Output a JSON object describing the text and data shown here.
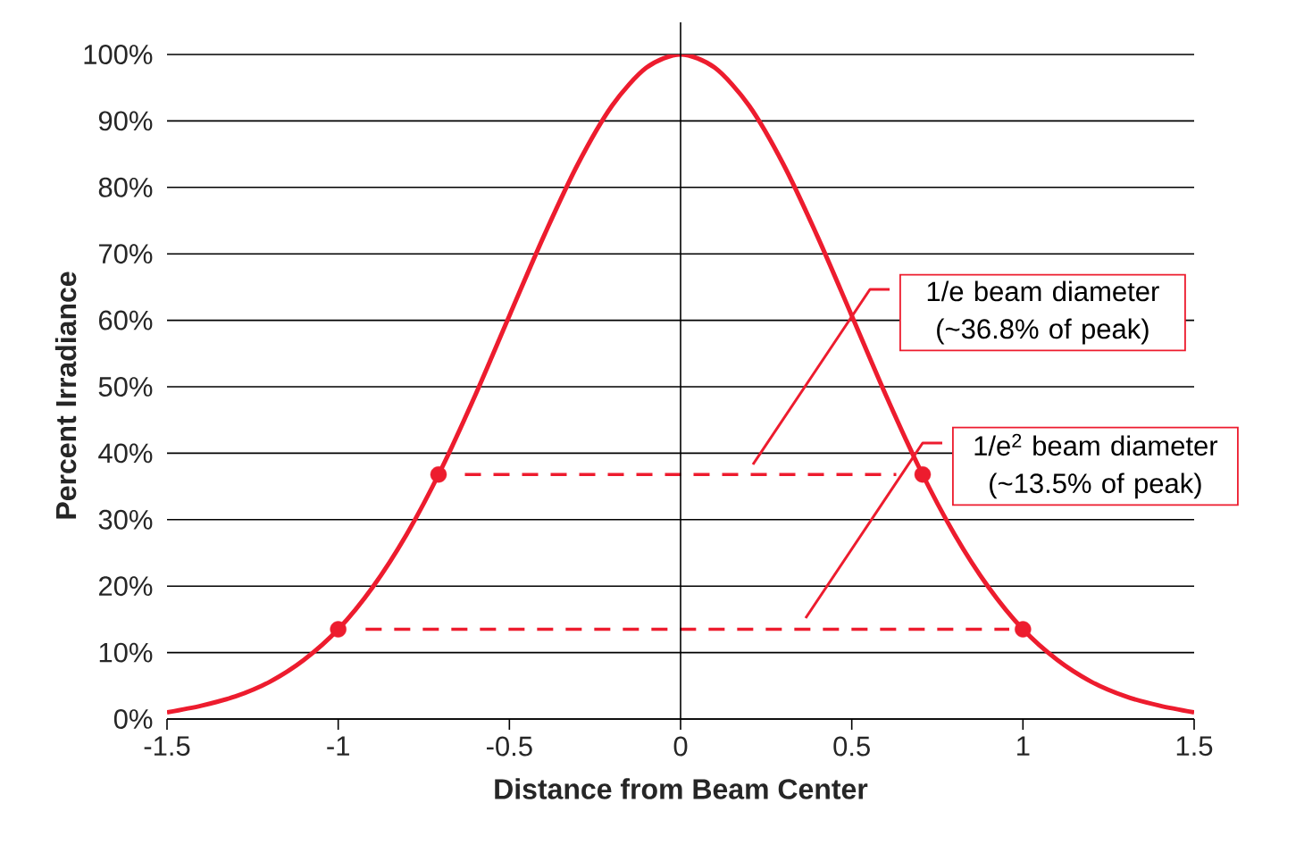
{
  "chart_data": {
    "type": "line",
    "xlabel": "Distance from Beam Center",
    "ylabel": "Percent Irradiance",
    "xlim": [
      -1.5,
      1.5
    ],
    "ylim": [
      0,
      100
    ],
    "xticks": [
      -1.5,
      -1,
      -0.5,
      0,
      0.5,
      1,
      1.5
    ],
    "yticks": [
      {
        "value": 0,
        "label": "0%"
      },
      {
        "value": 10,
        "label": "10%"
      },
      {
        "value": 20,
        "label": "20%"
      },
      {
        "value": 30,
        "label": "30%"
      },
      {
        "value": 40,
        "label": "40%"
      },
      {
        "value": 50,
        "label": "50%"
      },
      {
        "value": 60,
        "label": "60%"
      },
      {
        "value": 70,
        "label": "70%"
      },
      {
        "value": 80,
        "label": "80%"
      },
      {
        "value": 90,
        "label": "90%"
      },
      {
        "value": 100,
        "label": "100%"
      }
    ],
    "grid": "y",
    "series": [
      {
        "type": "line",
        "color": "#ed1c2e",
        "marker": "none",
        "line_style": "solid",
        "x": [
          -1.5,
          -1.4,
          -1.3,
          -1.2,
          -1.1,
          -1.0,
          -0.9,
          -0.8,
          -0.7,
          -0.6,
          -0.5,
          -0.4,
          -0.3,
          -0.2,
          -0.1,
          0,
          0.1,
          0.2,
          0.3,
          0.4,
          0.5,
          0.6,
          0.7,
          0.8,
          0.9,
          1.0,
          1.1,
          1.2,
          1.3,
          1.4,
          1.5
        ],
        "values": [
          1,
          2,
          3.4,
          5.6,
          8.9,
          13.5,
          19.8,
          27.8,
          37.5,
          48.7,
          60.7,
          72.6,
          83.5,
          92.3,
          98,
          100,
          98,
          92.3,
          83.5,
          72.6,
          60.7,
          48.7,
          37.5,
          27.8,
          19.8,
          13.5,
          8.9,
          5.6,
          3.4,
          2,
          1
        ]
      },
      {
        "type": "line",
        "color": "#ed1c2e",
        "marker": "none",
        "line_style": "dashed",
        "x": [
          -0.63,
          0.63
        ],
        "values": [
          36.8,
          36.8
        ]
      },
      {
        "type": "line",
        "color": "#ed1c2e",
        "marker": "none",
        "line_style": "dashed",
        "x": [
          -0.92,
          0.96
        ],
        "values": [
          13.5,
          13.5
        ]
      },
      {
        "type": "scatter",
        "color": "#ed1c2e",
        "marker": "circle",
        "x": [
          -0.707,
          0.707,
          -1,
          1
        ],
        "values": [
          36.8,
          36.8,
          13.5,
          13.5
        ]
      }
    ],
    "ref_lines": [
      {
        "axis": "x",
        "value": 0,
        "color": "#000000"
      }
    ],
    "annotations": [
      "1/e beam diameter (~36.8% of peak)",
      "1/e$^{2}$ beam diameter (~13.5% of peak)"
    ]
  }
}
